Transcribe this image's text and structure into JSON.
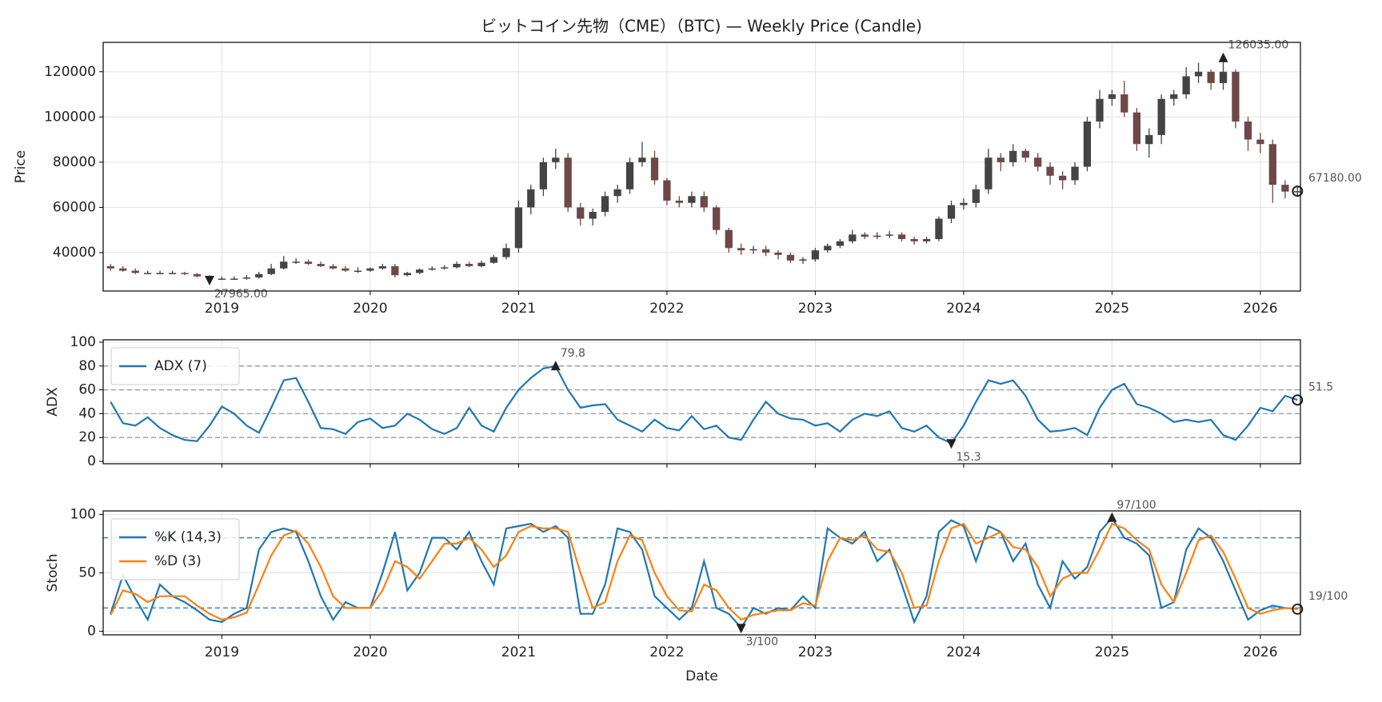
{
  "chart_data": [
    {
      "type": "candlestick",
      "title": "ビットコイン先物（CME）（BTC) — Weekly Price (Candle)",
      "ylabel": "Price",
      "xlim": [
        2018.2,
        2026.27
      ],
      "xticks": [
        2019,
        2020,
        2021,
        2022,
        2023,
        2024,
        2025,
        2026
      ],
      "ylim": [
        23000,
        133000
      ],
      "yticks": [
        40000,
        60000,
        80000,
        100000,
        120000
      ],
      "grid": true,
      "up_color": "#444444",
      "down_color": "#6e4848",
      "x": [
        2018.25,
        2018.333,
        2018.417,
        2018.5,
        2018.583,
        2018.667,
        2018.75,
        2018.833,
        2018.917,
        2019,
        2019.083,
        2019.167,
        2019.25,
        2019.333,
        2019.417,
        2019.5,
        2019.583,
        2019.667,
        2019.75,
        2019.833,
        2019.917,
        2020,
        2020.083,
        2020.167,
        2020.25,
        2020.333,
        2020.417,
        2020.5,
        2020.583,
        2020.667,
        2020.75,
        2020.833,
        2020.917,
        2021,
        2021.083,
        2021.167,
        2021.25,
        2021.333,
        2021.417,
        2021.5,
        2021.583,
        2021.667,
        2021.75,
        2021.833,
        2021.917,
        2022,
        2022.083,
        2022.167,
        2022.25,
        2022.333,
        2022.417,
        2022.5,
        2022.583,
        2022.667,
        2022.75,
        2022.833,
        2022.917,
        2023,
        2023.083,
        2023.167,
        2023.25,
        2023.333,
        2023.417,
        2023.5,
        2023.583,
        2023.667,
        2023.75,
        2023.833,
        2023.917,
        2024,
        2024.083,
        2024.167,
        2024.25,
        2024.333,
        2024.417,
        2024.5,
        2024.583,
        2024.667,
        2024.75,
        2024.833,
        2024.917,
        2025,
        2025.083,
        2025.167,
        2025.25,
        2025.333,
        2025.417,
        2025.5,
        2025.583,
        2025.667,
        2025.75,
        2025.833,
        2025.917,
        2026,
        2026.083,
        2026.167,
        2026.25
      ],
      "open": [
        34000,
        33000,
        32000,
        31000,
        31000,
        31000,
        31000,
        30500,
        29500,
        28500,
        28500,
        28500,
        29000,
        30500,
        33000,
        36000,
        36000,
        35000,
        34000,
        33000,
        32000,
        32000,
        33000,
        34000,
        30000,
        31000,
        32500,
        33000,
        33500,
        35000,
        34000,
        35500,
        38000,
        42000,
        60000,
        68000,
        80000,
        82000,
        60000,
        55000,
        58000,
        65000,
        68000,
        80000,
        82000,
        72000,
        63000,
        62000,
        65000,
        60000,
        50000,
        42000,
        41000,
        41500,
        40000,
        39000,
        36500,
        37000,
        41000,
        43000,
        45000,
        48000,
        47000,
        47500,
        48000,
        46000,
        45000,
        46000,
        55000,
        61000,
        62000,
        68000,
        82000,
        80000,
        85000,
        82000,
        78000,
        74000,
        72000,
        78000,
        98000,
        108000,
        110000,
        102000,
        88000,
        92000,
        108000,
        110000,
        118000,
        120000,
        115000,
        120000,
        98000,
        90000,
        88000,
        70000,
        67000
      ],
      "high": [
        35000,
        34000,
        33000,
        32000,
        32000,
        32000,
        31500,
        31000,
        30000,
        29500,
        29500,
        30000,
        31500,
        35000,
        38500,
        37500,
        37000,
        36000,
        35000,
        34000,
        33500,
        33500,
        35000,
        35000,
        31500,
        33000,
        34000,
        34500,
        36000,
        36000,
        36500,
        39000,
        44000,
        63000,
        70000,
        82000,
        86000,
        84000,
        62000,
        59500,
        67000,
        70000,
        82000,
        89000,
        85000,
        73000,
        65000,
        67000,
        67000,
        61000,
        51000,
        44000,
        43000,
        43000,
        41000,
        40000,
        38000,
        42000,
        44000,
        46000,
        50000,
        49000,
        49000,
        49500,
        49000,
        47000,
        47000,
        56000,
        63000,
        64000,
        70000,
        86000,
        84000,
        88000,
        86000,
        84000,
        80000,
        76000,
        80000,
        100000,
        112000,
        112000,
        116000,
        104000,
        95000,
        110000,
        112000,
        122000,
        124000,
        121000,
        126035,
        121000,
        100000,
        93000,
        90000,
        72000,
        69000
      ],
      "low": [
        32000,
        31500,
        30500,
        30500,
        30500,
        30500,
        30000,
        29000,
        27965,
        28000,
        28000,
        28000,
        28500,
        30000,
        32500,
        35000,
        34500,
        33500,
        32500,
        31500,
        31000,
        31500,
        32500,
        29000,
        29500,
        30500,
        32000,
        32500,
        33000,
        33500,
        33500,
        35000,
        37000,
        40000,
        57000,
        65000,
        77000,
        58000,
        52000,
        52000,
        56000,
        62000,
        66000,
        78000,
        70000,
        61000,
        60000,
        60000,
        58000,
        48000,
        40000,
        39000,
        39500,
        38500,
        37000,
        35500,
        35000,
        36000,
        40000,
        42000,
        44000,
        46000,
        46000,
        46500,
        45000,
        43500,
        44000,
        45000,
        53000,
        59000,
        60000,
        66000,
        76000,
        78000,
        80000,
        76000,
        70000,
        68000,
        70000,
        76000,
        95000,
        105000,
        100000,
        85000,
        82000,
        88000,
        105000,
        108000,
        115000,
        112000,
        112000,
        95000,
        85000,
        84000,
        62000,
        64000,
        65000
      ],
      "close": [
        33000,
        32000,
        31000,
        31000,
        31000,
        31000,
        30500,
        29500,
        28500,
        28500,
        28500,
        29000,
        30500,
        33000,
        36000,
        36000,
        35000,
        34000,
        33000,
        32000,
        32000,
        33000,
        34000,
        30000,
        31000,
        32500,
        33000,
        33500,
        35000,
        34000,
        35500,
        38000,
        42000,
        60000,
        68000,
        80000,
        82000,
        60000,
        55000,
        58000,
        65000,
        68000,
        80000,
        82000,
        72000,
        63000,
        62000,
        65000,
        60000,
        50000,
        42000,
        41000,
        41500,
        40000,
        39000,
        36500,
        37000,
        41000,
        43000,
        45000,
        48000,
        47000,
        47500,
        48000,
        46000,
        45000,
        46000,
        55000,
        61000,
        62000,
        68000,
        82000,
        80000,
        85000,
        82000,
        78000,
        74000,
        72000,
        78000,
        98000,
        108000,
        110000,
        102000,
        88000,
        92000,
        108000,
        110000,
        118000,
        120000,
        115000,
        120000,
        98000,
        90000,
        88000,
        70000,
        67000,
        67180
      ],
      "annotations": [
        {
          "x": 2025.75,
          "value": 126035,
          "label": "126035.00",
          "marker": "up"
        },
        {
          "x": 2018.917,
          "value": 27965,
          "label": "27965.00",
          "marker": "down"
        },
        {
          "x": 2026.25,
          "value": 67180,
          "label": "67180.00",
          "marker": "circle"
        }
      ]
    },
    {
      "type": "line",
      "ylabel": "ADX",
      "xtick_labels": false,
      "xlim": [
        2018.2,
        2026.27
      ],
      "xticks": [
        2019,
        2020,
        2021,
        2022,
        2023,
        2024,
        2025,
        2026
      ],
      "ylim": [
        -2,
        102
      ],
      "yticks": [
        0,
        20,
        40,
        60,
        80,
        100
      ],
      "grid": true,
      "hlines": [
        20,
        40,
        60,
        80
      ],
      "hline_color": "#999999",
      "legend": "upper left",
      "x": [
        2018.25,
        2018.333,
        2018.417,
        2018.5,
        2018.583,
        2018.667,
        2018.75,
        2018.833,
        2018.917,
        2019,
        2019.083,
        2019.167,
        2019.25,
        2019.333,
        2019.417,
        2019.5,
        2019.583,
        2019.667,
        2019.75,
        2019.833,
        2019.917,
        2020,
        2020.083,
        2020.167,
        2020.25,
        2020.333,
        2020.417,
        2020.5,
        2020.583,
        2020.667,
        2020.75,
        2020.833,
        2020.917,
        2021,
        2021.083,
        2021.167,
        2021.25,
        2021.333,
        2021.417,
        2021.5,
        2021.583,
        2021.667,
        2021.75,
        2021.833,
        2021.917,
        2022,
        2022.083,
        2022.167,
        2022.25,
        2022.333,
        2022.417,
        2022.5,
        2022.583,
        2022.667,
        2022.75,
        2022.833,
        2022.917,
        2023,
        2023.083,
        2023.167,
        2023.25,
        2023.333,
        2023.417,
        2023.5,
        2023.583,
        2023.667,
        2023.75,
        2023.833,
        2023.917,
        2024,
        2024.083,
        2024.167,
        2024.25,
        2024.333,
        2024.417,
        2024.5,
        2024.583,
        2024.667,
        2024.75,
        2024.833,
        2024.917,
        2025,
        2025.083,
        2025.167,
        2025.25,
        2025.333,
        2025.417,
        2025.5,
        2025.583,
        2025.667,
        2025.75,
        2025.833,
        2025.917,
        2026,
        2026.083,
        2026.167,
        2026.25
      ],
      "series": [
        {
          "name": "ADX (7)",
          "color": "#1f77b4",
          "values": [
            50,
            32,
            30,
            37,
            28,
            22,
            18,
            17,
            30,
            46,
            40,
            30,
            24,
            45,
            68,
            70,
            50,
            28,
            27,
            23,
            33,
            36,
            28,
            30,
            40,
            35,
            27,
            23,
            28,
            45,
            30,
            25,
            45,
            60,
            70,
            78,
            79.8,
            60,
            45,
            47,
            48,
            35,
            30,
            25,
            35,
            28,
            26,
            38,
            27,
            30,
            20,
            18,
            35,
            50,
            40,
            36,
            35,
            30,
            32,
            25,
            35,
            40,
            38,
            42,
            28,
            25,
            30,
            20,
            15.3,
            30,
            50,
            68,
            65,
            68,
            55,
            35,
            25,
            26,
            28,
            22,
            45,
            60,
            65,
            48,
            45,
            40,
            33,
            35,
            33,
            35,
            22,
            18,
            30,
            45,
            42,
            55,
            51.5
          ]
        }
      ],
      "annotations": [
        {
          "x": 2021.25,
          "value": 79.8,
          "label": "79.8",
          "marker": "up"
        },
        {
          "x": 2023.917,
          "value": 15.3,
          "label": "15.3",
          "marker": "down"
        },
        {
          "x": 2026.25,
          "value": 51.5,
          "label": "51.5",
          "marker": "circle"
        }
      ]
    },
    {
      "type": "line",
      "ylabel": "Stoch",
      "xlabel": "Date",
      "xlim": [
        2018.2,
        2026.27
      ],
      "xticks": [
        2019,
        2020,
        2021,
        2022,
        2023,
        2024,
        2025,
        2026
      ],
      "ylim": [
        -3,
        103
      ],
      "yticks": [
        0,
        50,
        100
      ],
      "grid": true,
      "hlines": [
        20,
        80
      ],
      "hline_color": "#1f77b4",
      "legend": "upper left",
      "x": [
        2018.25,
        2018.333,
        2018.417,
        2018.5,
        2018.583,
        2018.667,
        2018.75,
        2018.833,
        2018.917,
        2019,
        2019.083,
        2019.167,
        2019.25,
        2019.333,
        2019.417,
        2019.5,
        2019.583,
        2019.667,
        2019.75,
        2019.833,
        2019.917,
        2020,
        2020.083,
        2020.167,
        2020.25,
        2020.333,
        2020.417,
        2020.5,
        2020.583,
        2020.667,
        2020.75,
        2020.833,
        2020.917,
        2021,
        2021.083,
        2021.167,
        2021.25,
        2021.333,
        2021.417,
        2021.5,
        2021.583,
        2021.667,
        2021.75,
        2021.833,
        2021.917,
        2022,
        2022.083,
        2022.167,
        2022.25,
        2022.333,
        2022.417,
        2022.5,
        2022.583,
        2022.667,
        2022.75,
        2022.833,
        2022.917,
        2023,
        2023.083,
        2023.167,
        2023.25,
        2023.333,
        2023.417,
        2023.5,
        2023.583,
        2023.667,
        2023.75,
        2023.833,
        2023.917,
        2024,
        2024.083,
        2024.167,
        2024.25,
        2024.333,
        2024.417,
        2024.5,
        2024.583,
        2024.667,
        2024.75,
        2024.833,
        2024.917,
        2025,
        2025.083,
        2025.167,
        2025.25,
        2025.333,
        2025.417,
        2025.5,
        2025.583,
        2025.667,
        2025.75,
        2025.833,
        2025.917,
        2026,
        2026.083,
        2026.167,
        2026.25
      ],
      "series": [
        {
          "name": "%K (14,3)",
          "color": "#1f77b4",
          "values": [
            15,
            48,
            28,
            10,
            40,
            30,
            25,
            18,
            10,
            8,
            15,
            20,
            70,
            85,
            88,
            85,
            60,
            30,
            10,
            25,
            20,
            20,
            50,
            85,
            35,
            50,
            80,
            80,
            70,
            85,
            60,
            40,
            88,
            90,
            92,
            85,
            90,
            80,
            15,
            15,
            40,
            88,
            85,
            70,
            30,
            20,
            10,
            20,
            60,
            20,
            15,
            3,
            20,
            15,
            20,
            18,
            30,
            20,
            88,
            80,
            75,
            85,
            60,
            70,
            40,
            8,
            30,
            85,
            95,
            90,
            60,
            90,
            85,
            60,
            75,
            40,
            20,
            60,
            45,
            55,
            85,
            97,
            80,
            75,
            65,
            20,
            25,
            70,
            88,
            80,
            60,
            35,
            10,
            18,
            22,
            20,
            19
          ]
        },
        {
          "name": "%D (3)",
          "color": "#ff7f0e",
          "values": [
            14,
            35,
            32,
            25,
            30,
            30,
            30,
            22,
            15,
            10,
            12,
            16,
            40,
            65,
            82,
            86,
            75,
            55,
            30,
            20,
            20,
            20,
            35,
            60,
            55,
            45,
            60,
            75,
            75,
            80,
            70,
            55,
            65,
            85,
            90,
            88,
            88,
            85,
            50,
            20,
            25,
            60,
            82,
            78,
            50,
            30,
            18,
            17,
            40,
            35,
            20,
            10,
            14,
            16,
            18,
            18,
            24,
            22,
            60,
            80,
            78,
            82,
            70,
            68,
            50,
            20,
            22,
            60,
            88,
            92,
            75,
            80,
            85,
            72,
            70,
            55,
            30,
            45,
            50,
            50,
            70,
            92,
            88,
            78,
            70,
            40,
            25,
            50,
            78,
            82,
            68,
            45,
            20,
            15,
            18,
            20,
            19
          ]
        }
      ],
      "annotations": [
        {
          "x": 2025.0,
          "value": 97,
          "label": "97/100",
          "marker": "up"
        },
        {
          "x": 2022.5,
          "value": 3,
          "label": "3/100",
          "marker": "down"
        },
        {
          "x": 2026.25,
          "value": 19,
          "label": "19/100",
          "marker": "circle"
        }
      ]
    }
  ]
}
